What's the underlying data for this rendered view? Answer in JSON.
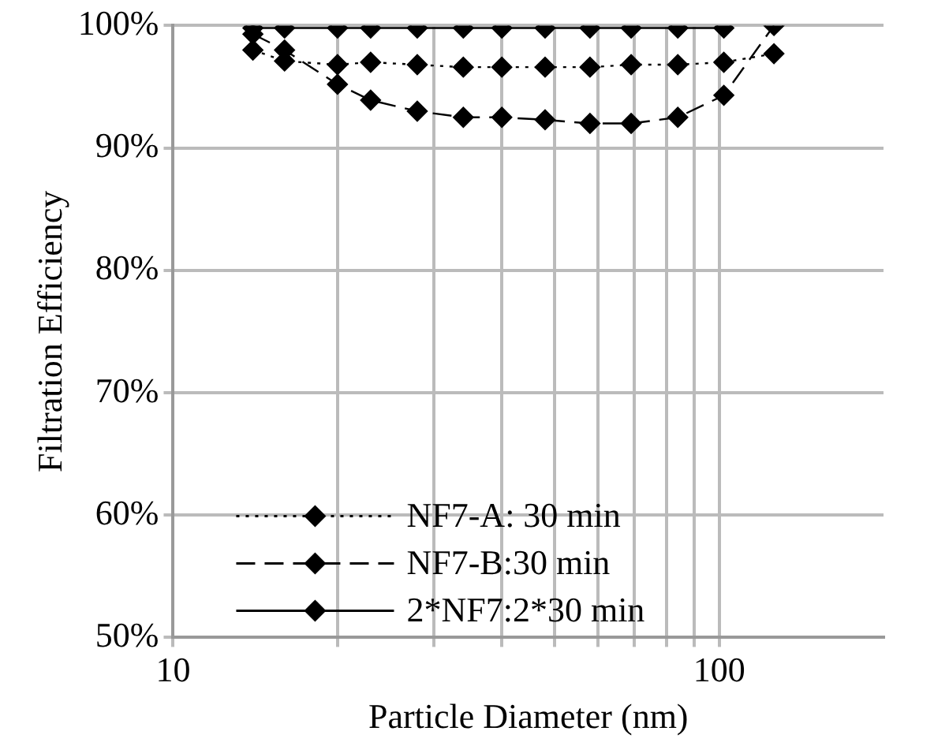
{
  "chart_data": {
    "type": "line",
    "xlabel": "Particle Diameter (nm)",
    "ylabel": "Filtration Efficiency",
    "log": "x",
    "grid": true,
    "legend": "bottom",
    "marker": "diamond",
    "xlim": [
      10,
      200
    ],
    "xticks": [
      10,
      {
        "value": 20,
        "label": null
      },
      {
        "value": 30,
        "label": null
      },
      {
        "value": 40,
        "label": null
      },
      {
        "value": 50,
        "label": null
      },
      {
        "value": 60,
        "label": null
      },
      {
        "value": 70,
        "label": null
      },
      {
        "value": 80,
        "label": null
      },
      {
        "value": 90,
        "label": null
      },
      100
    ],
    "ylim": [
      50,
      100
    ],
    "yticks": [
      {
        "value": 50,
        "label": "50%"
      },
      {
        "value": 60,
        "label": "60%"
      },
      {
        "value": 70,
        "label": "70%"
      },
      {
        "value": 80,
        "label": "80%"
      },
      {
        "value": 90,
        "label": "90%"
      },
      {
        "value": 100,
        "label": "100%"
      }
    ],
    "series": [
      {
        "name": "NF7-A: 30 min",
        "color": "#000000",
        "line_style": "dotted",
        "x": [
          14,
          16,
          20,
          23,
          28,
          34,
          40,
          48,
          58,
          69,
          84,
          102,
          126
        ],
        "values": [
          98.0,
          97.1,
          96.8,
          97.0,
          96.8,
          96.6,
          96.6,
          96.6,
          96.6,
          96.8,
          96.8,
          97.0,
          97.7
        ]
      },
      {
        "name": "NF7-B:30 min",
        "color": "#000000",
        "line_style": "dashed",
        "x": [
          14,
          16,
          20,
          23,
          28,
          34,
          40,
          48,
          58,
          69,
          84,
          102,
          126
        ],
        "values": [
          99.3,
          98.0,
          95.2,
          93.9,
          93.0,
          92.5,
          92.5,
          92.3,
          92.0,
          92.0,
          92.5,
          94.3,
          100
        ]
      },
      {
        "name": "2*NF7:2*30 min",
        "color": "#000000",
        "line_style": "solid",
        "x": [
          14,
          16,
          20,
          23,
          28,
          34,
          40,
          48,
          58,
          69,
          84,
          102
        ],
        "values": [
          99.8,
          99.8,
          99.8,
          99.8,
          99.8,
          99.8,
          99.8,
          99.8,
          99.8,
          99.8,
          99.8,
          99.8
        ]
      }
    ]
  }
}
